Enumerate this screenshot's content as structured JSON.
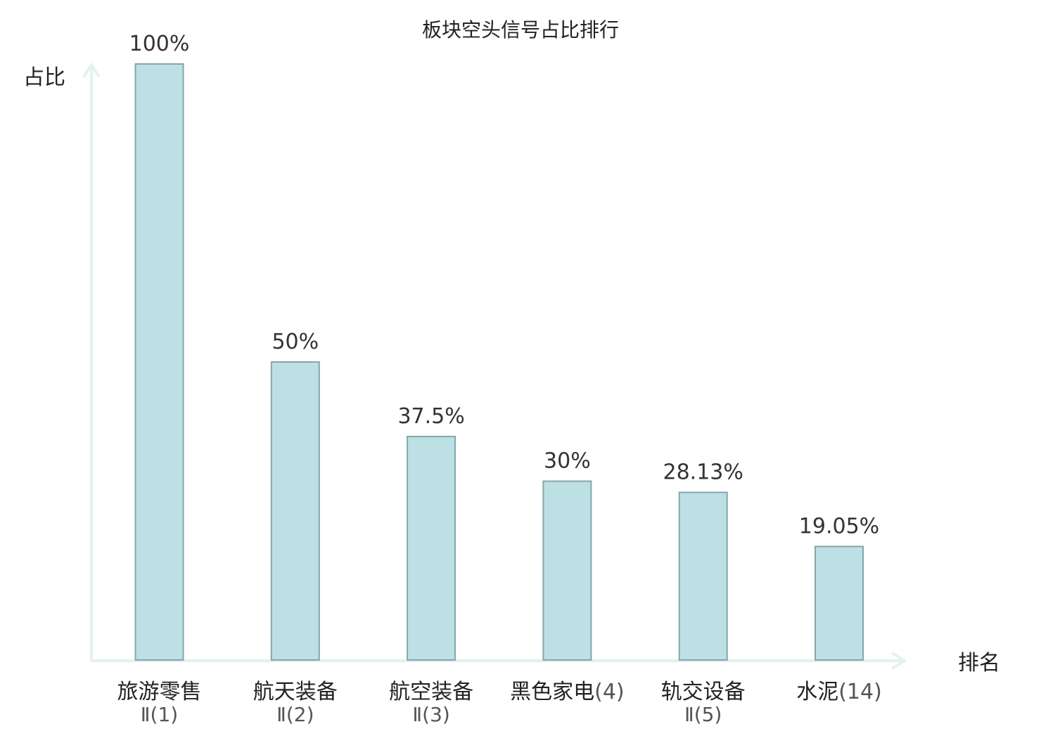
{
  "chart_data": {
    "type": "bar",
    "title": "板块空头信号占比排行",
    "ylabel": "占比",
    "xlabel": "排名",
    "ylim": [
      0,
      100
    ],
    "grid": false,
    "categories": [
      {
        "name": "旅游零售",
        "suffix": "",
        "sub": "Ⅱ(1)",
        "highlight": false
      },
      {
        "name": "航天装备",
        "suffix": "",
        "sub": "Ⅱ(2)",
        "highlight": false
      },
      {
        "name": "航空装备",
        "suffix": "",
        "sub": "Ⅱ(3)",
        "highlight": false
      },
      {
        "name": "黑色家电",
        "suffix": "(4)",
        "sub": "",
        "highlight": false
      },
      {
        "name": "轨交设备",
        "suffix": "",
        "sub": "Ⅱ(5)",
        "highlight": false
      },
      {
        "name": "水泥",
        "suffix": "(14)",
        "sub": "",
        "highlight": true
      }
    ],
    "values": [
      100,
      50,
      37.5,
      30,
      28.13,
      19.05
    ],
    "data_labels": [
      "100%",
      "50%",
      "37.5%",
      "30%",
      "28.13%",
      "19.05%"
    ]
  },
  "colors": {
    "bar_fill": "#bce0e3",
    "bar_stroke": "#86a6a9",
    "axis": "#e2f2ef",
    "highlight": "#e8141b",
    "text": "#222222"
  }
}
